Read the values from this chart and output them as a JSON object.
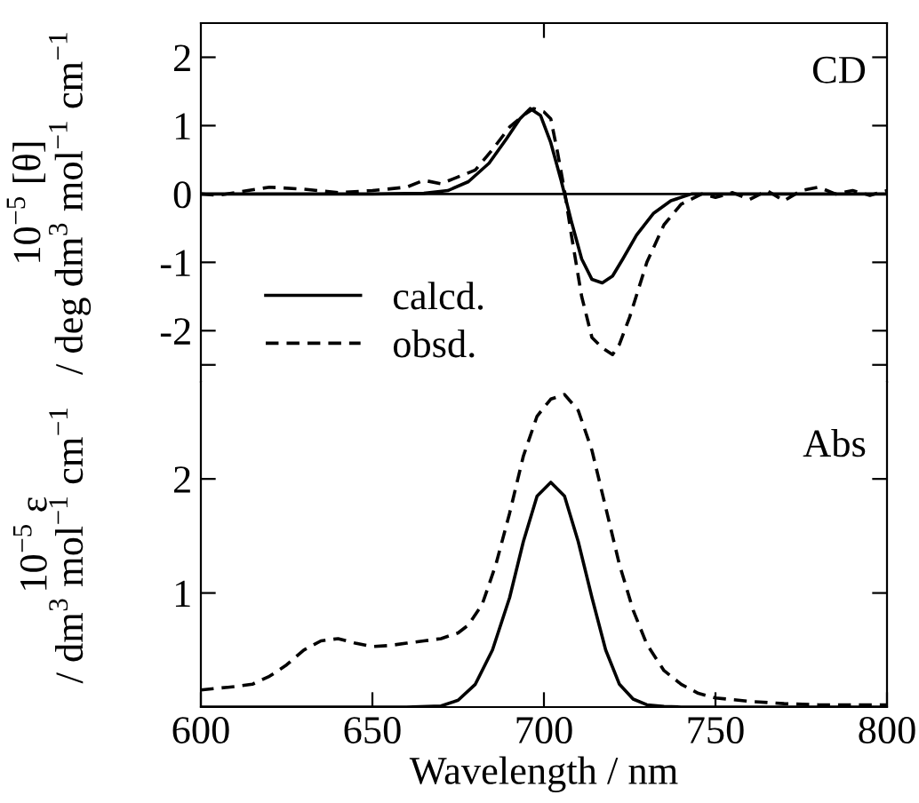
{
  "chart_data": [
    {
      "type": "line",
      "ylabel": "10$^{−5}$ [θ]\n/ deg dm$^{3}$ mol$^{−1}$ cm$^{−1}$",
      "annotations": [
        "CD"
      ],
      "xlim": [
        600,
        800
      ],
      "xticks": [
        {
          "value": 700,
          "label": null
        }
      ],
      "ylim": [
        -2.75,
        2.5
      ],
      "yticks": [
        -2,
        -1,
        0,
        1,
        2,
        {
          "value": -2.5,
          "label": null
        }
      ],
      "tick_labels": "y",
      "legend": "bottom left",
      "grid": false,
      "ref_lines": [
        {
          "axis": "y",
          "value": 0,
          "color": "#000000",
          "line_style": "solid"
        }
      ],
      "series": [
        {
          "name": "calcd.",
          "color": "#000000",
          "line_style": "solid",
          "x": [
            600,
            650,
            665,
            672,
            678,
            684,
            689,
            693,
            696,
            699,
            702,
            705,
            708,
            711,
            714,
            717,
            720,
            723,
            727,
            732,
            737,
            743,
            750,
            800
          ],
          "values": [
            0,
            0,
            0.01,
            0.05,
            0.18,
            0.45,
            0.8,
            1.1,
            1.25,
            1.15,
            0.75,
            0.2,
            -0.4,
            -0.95,
            -1.25,
            -1.3,
            -1.2,
            -0.95,
            -0.6,
            -0.28,
            -0.1,
            0,
            0,
            0
          ]
        },
        {
          "name": "obsd.",
          "color": "#000000",
          "line_style": "dashed",
          "x": [
            600,
            605,
            610,
            620,
            630,
            640,
            650,
            660,
            665,
            670,
            675,
            680,
            685,
            690,
            694,
            697,
            700,
            702,
            704,
            706,
            708,
            711,
            714,
            717,
            720,
            722,
            725,
            730,
            735,
            740,
            746,
            750,
            755,
            760,
            765,
            770,
            775,
            780,
            785,
            790,
            795,
            800
          ],
          "values": [
            0,
            -0.02,
            0.02,
            0.1,
            0.07,
            0.02,
            0.05,
            0.1,
            0.2,
            0.15,
            0.25,
            0.35,
            0.65,
            0.98,
            1.15,
            1.25,
            1.2,
            1.1,
            0.6,
            0.05,
            -0.6,
            -1.5,
            -2.1,
            -2.25,
            -2.35,
            -2.2,
            -1.8,
            -1.0,
            -0.45,
            -0.15,
            0,
            -0.05,
            0.02,
            -0.08,
            0.05,
            -0.1,
            0.05,
            0.1,
            0.0,
            0.05,
            -0.02,
            0.05
          ]
        }
      ]
    },
    {
      "type": "line",
      "xlabel": "Wavelength / nm",
      "ylabel": "10$^{−5}$ ε\n/ dm$^{3}$ mol$^{−1}$ cm$^{−1}$",
      "annotations": [
        "Abs"
      ],
      "xlim": [
        600,
        800
      ],
      "xticks": [
        600,
        650,
        700,
        750,
        800
      ],
      "ylim": [
        0,
        2.85
      ],
      "yticks": [
        1,
        2
      ],
      "grid": false,
      "series": [
        {
          "color": "#000000",
          "line_style": "solid",
          "x": [
            600,
            660,
            670,
            675,
            680,
            685,
            690,
            694,
            698,
            702,
            706,
            710,
            714,
            718,
            722,
            726,
            730,
            735,
            740,
            750,
            800
          ],
          "values": [
            0,
            0,
            0.01,
            0.06,
            0.2,
            0.5,
            0.96,
            1.45,
            1.85,
            1.97,
            1.85,
            1.45,
            0.96,
            0.5,
            0.2,
            0.07,
            0.02,
            0.005,
            0,
            0,
            0
          ]
        },
        {
          "color": "#000000",
          "line_style": "dashed",
          "x": [
            600,
            610,
            615,
            620,
            625,
            630,
            635,
            640,
            645,
            650,
            655,
            660,
            665,
            670,
            675,
            678,
            682,
            686,
            690,
            694,
            698,
            702,
            706,
            710,
            714,
            718,
            722,
            726,
            730,
            735,
            740,
            745,
            750,
            760,
            770,
            780,
            790,
            800
          ],
          "values": [
            0.15,
            0.18,
            0.2,
            0.27,
            0.37,
            0.5,
            0.58,
            0.6,
            0.56,
            0.53,
            0.54,
            0.56,
            0.58,
            0.6,
            0.65,
            0.72,
            0.9,
            1.25,
            1.7,
            2.2,
            2.55,
            2.7,
            2.74,
            2.6,
            2.25,
            1.75,
            1.25,
            0.85,
            0.55,
            0.32,
            0.2,
            0.12,
            0.08,
            0.05,
            0.03,
            0.02,
            0.02,
            0.02
          ]
        }
      ]
    }
  ]
}
